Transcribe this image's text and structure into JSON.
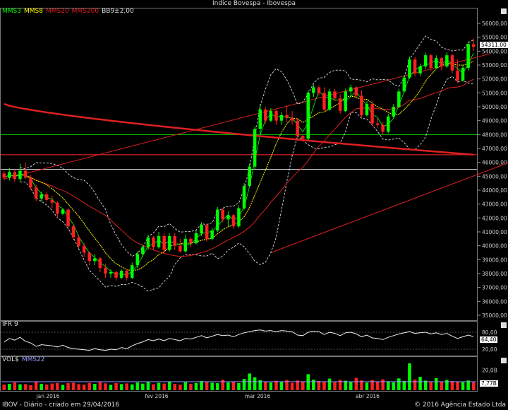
{
  "title": "Índice Bovespa - Ibovespa",
  "legend": {
    "items": [
      {
        "label": "MMS3",
        "color": "#00ff00"
      },
      {
        "label": "MMS8",
        "color": "#ffff00"
      },
      {
        "label": "MMS20",
        "color": "#dd2020"
      },
      {
        "label": "MMS200",
        "color": "#dd2020"
      },
      {
        "label": "BB9±2,00",
        "color": "#dddddd"
      }
    ]
  },
  "price_axis": {
    "ticks": [
      "56000,00",
      "55000,00",
      "54000,00",
      "53000,00",
      "52000,00",
      "51000,00",
      "50000,00",
      "49000,00",
      "48000,00",
      "47000,00",
      "46000,00",
      "45000,00",
      "44000,00",
      "43000,00",
      "42000,00",
      "41000,00",
      "40000,00",
      "39000,00",
      "38000,00",
      "37000,00",
      "36000,00",
      "35000,00"
    ],
    "last_value": "54311,00"
  },
  "x_labels": [
    "jan 2016",
    "fev 2016",
    "mar 2016",
    "abr 2016"
  ],
  "ifr": {
    "label": "IFR 9",
    "ticks": [
      "80,00",
      "20,00"
    ],
    "last_value": "64,40"
  },
  "volume": {
    "label_vol": "VOL$",
    "label_mms": "MMS22",
    "tick": "20,0B",
    "last_value": "7,77B"
  },
  "footer": {
    "left": "IBOV - Diário - criado em 29/04/2016",
    "right": "© 2016 Agência Estado Ltda"
  },
  "colors": {
    "up": "#00ff00",
    "down": "#ff2020",
    "mms3": "#00ff00",
    "mms8": "#ffff00",
    "mms20": "#dd2020",
    "mms200": "#dd2020",
    "bollinger": "#dddddd",
    "support_green": "#00cc00",
    "level_white": "#cccccc",
    "volume_avg": "#9999ff"
  },
  "chart_data": {
    "type": "candlestick",
    "title": "Índice Bovespa - Ibovespa",
    "y_range": [
      34500,
      56700
    ],
    "ifr_range": [
      0,
      100
    ],
    "volume_unit": "B",
    "horizontal_levels": [
      {
        "value": 48000,
        "color": "green"
      },
      {
        "value": 46550,
        "color": "red"
      },
      {
        "value": 45500,
        "color": "white"
      }
    ],
    "trendlines": [
      {
        "from": [
          0,
          44800
        ],
        "to": [
          91,
          53800
        ]
      },
      {
        "from": [
          50,
          39500
        ],
        "to": [
          114,
          48800
        ]
      }
    ],
    "ohlc": [
      [
        45200,
        45400,
        44700,
        44900
      ],
      [
        44900,
        45600,
        44700,
        45300
      ],
      [
        45300,
        45500,
        44600,
        44800
      ],
      [
        44800,
        45900,
        44600,
        45400
      ],
      [
        45400,
        46000,
        44800,
        44900
      ],
      [
        44900,
        45100,
        44000,
        44200
      ],
      [
        44200,
        44400,
        43200,
        43400
      ],
      [
        43400,
        43900,
        43200,
        43700
      ],
      [
        43700,
        43900,
        43200,
        43300
      ],
      [
        43300,
        43600,
        42700,
        43100
      ],
      [
        43100,
        43200,
        42000,
        42300
      ],
      [
        42300,
        42700,
        42200,
        42600
      ],
      [
        42600,
        42700,
        41200,
        41400
      ],
      [
        41400,
        41500,
        40400,
        40600
      ],
      [
        40600,
        40800,
        39800,
        40000
      ],
      [
        40000,
        40200,
        39200,
        39500
      ],
      [
        39500,
        39600,
        38600,
        38900
      ],
      [
        38900,
        39400,
        38600,
        39100
      ],
      [
        39100,
        39200,
        38100,
        38400
      ],
      [
        38400,
        38700,
        37700,
        38000
      ],
      [
        38000,
        38300,
        37700,
        38100
      ],
      [
        38100,
        38200,
        37500,
        37700
      ],
      [
        37700,
        38300,
        37600,
        38200
      ],
      [
        38200,
        38300,
        37500,
        37700
      ],
      [
        37700,
        38800,
        37600,
        38600
      ],
      [
        38600,
        39600,
        38400,
        39400
      ],
      [
        39400,
        40100,
        39200,
        39900
      ],
      [
        39900,
        40800,
        39700,
        40600
      ],
      [
        40600,
        40700,
        39700,
        39900
      ],
      [
        39900,
        41000,
        39800,
        40700
      ],
      [
        40700,
        40900,
        39500,
        39700
      ],
      [
        39700,
        40900,
        39600,
        40700
      ],
      [
        40700,
        40900,
        39700,
        40000
      ],
      [
        40000,
        40500,
        39500,
        39600
      ],
      [
        39600,
        40800,
        39500,
        40500
      ],
      [
        40500,
        40600,
        39900,
        40200
      ],
      [
        40200,
        41100,
        40100,
        40900
      ],
      [
        40900,
        41700,
        40700,
        41500
      ],
      [
        41500,
        41600,
        40300,
        40500
      ],
      [
        40500,
        41300,
        40400,
        41100
      ],
      [
        41100,
        42800,
        41000,
        42600
      ],
      [
        42600,
        42700,
        41700,
        41900
      ],
      [
        41900,
        42500,
        41400,
        42200
      ],
      [
        42200,
        42300,
        41200,
        41400
      ],
      [
        41400,
        42900,
        41300,
        42700
      ],
      [
        42700,
        44500,
        42600,
        44300
      ],
      [
        44300,
        45900,
        44200,
        45700
      ],
      [
        45700,
        48600,
        45500,
        48400
      ],
      [
        48400,
        50200,
        48000,
        49800
      ],
      [
        49800,
        50000,
        48800,
        49000
      ],
      [
        49000,
        49900,
        48900,
        49700
      ],
      [
        49700,
        49800,
        48700,
        49000
      ],
      [
        49000,
        49600,
        48700,
        49400
      ],
      [
        49400,
        50100,
        48900,
        49200
      ],
      [
        49200,
        49700,
        48700,
        49000
      ],
      [
        49000,
        49200,
        47700,
        47900
      ],
      [
        47900,
        48000,
        47500,
        47700
      ],
      [
        47700,
        51200,
        47600,
        51000
      ],
      [
        51000,
        51600,
        50700,
        51400
      ],
      [
        51400,
        51500,
        50800,
        51000
      ],
      [
        51000,
        51400,
        49600,
        49800
      ],
      [
        49800,
        51300,
        49700,
        51100
      ],
      [
        51100,
        51300,
        50400,
        50600
      ],
      [
        50600,
        50900,
        49500,
        49700
      ],
      [
        49700,
        51300,
        49600,
        51100
      ],
      [
        51100,
        51600,
        50700,
        51400
      ],
      [
        51400,
        51500,
        50600,
        50800
      ],
      [
        50800,
        51200,
        49200,
        49400
      ],
      [
        49400,
        50400,
        49300,
        50200
      ],
      [
        50200,
        50400,
        48600,
        48800
      ],
      [
        48800,
        49200,
        48500,
        48700
      ],
      [
        48700,
        48900,
        48000,
        48200
      ],
      [
        48200,
        49500,
        48100,
        49300
      ],
      [
        49300,
        50200,
        49200,
        50000
      ],
      [
        50000,
        51300,
        49900,
        51100
      ],
      [
        51100,
        52300,
        51000,
        52100
      ],
      [
        52100,
        53600,
        52000,
        53400
      ],
      [
        53400,
        53600,
        52200,
        52400
      ],
      [
        52400,
        53100,
        52200,
        52900
      ],
      [
        52900,
        53900,
        52700,
        53700
      ],
      [
        53700,
        53800,
        52600,
        52800
      ],
      [
        52800,
        53700,
        52700,
        53500
      ],
      [
        53500,
        53600,
        52600,
        52900
      ],
      [
        52900,
        53900,
        52800,
        53700
      ],
      [
        53700,
        53800,
        52400,
        52600
      ],
      [
        52600,
        53400,
        51700,
        51900
      ],
      [
        51900,
        53000,
        51800,
        52800
      ],
      [
        52800,
        54700,
        52600,
        54500
      ],
      [
        54500,
        54900,
        54000,
        54311
      ]
    ],
    "ifr": [
      45,
      58,
      52,
      62,
      48,
      42,
      30,
      36,
      34,
      32,
      28,
      34,
      26,
      22,
      20,
      18,
      16,
      22,
      18,
      16,
      20,
      18,
      26,
      22,
      32,
      40,
      46,
      54,
      50,
      56,
      50,
      58,
      54,
      50,
      58,
      56,
      62,
      68,
      60,
      66,
      72,
      68,
      70,
      64,
      72,
      78,
      82,
      86,
      88,
      84,
      86,
      82,
      86,
      84,
      82,
      70,
      68,
      80,
      84,
      82,
      72,
      80,
      76,
      68,
      78,
      80,
      74,
      64,
      70,
      60,
      58,
      54,
      62,
      68,
      74,
      78,
      82,
      76,
      78,
      80,
      74,
      78,
      72,
      76,
      66,
      58,
      64,
      70,
      64.4
    ],
    "volume": [
      5.5,
      6.2,
      7.8,
      5.9,
      6.1,
      5.0,
      8.2,
      6.4,
      5.7,
      6.6,
      7.1,
      5.3,
      6.9,
      7.4,
      6.0,
      5.6,
      7.2,
      6.3,
      8.0,
      6.8,
      5.4,
      7.0,
      6.1,
      6.7,
      5.8,
      7.6,
      6.5,
      8.4,
      5.9,
      7.3,
      6.6,
      8.8,
      6.2,
      5.5,
      7.9,
      6.4,
      7.1,
      9.0,
      8.3,
      7.4,
      6.9,
      10.5,
      7.7,
      8.2,
      7.0,
      11.2,
      16.5,
      12.8,
      9.9,
      8.1,
      7.6,
      9.3,
      8.5,
      10.1,
      7.2,
      9.6,
      8.8,
      15.8,
      10.4,
      9.1,
      8.6,
      11.5,
      7.9,
      10.2,
      9.4,
      8.0,
      12.1,
      9.7,
      7.5,
      9.9,
      8.3,
      10.8,
      8.9,
      7.8,
      11.7,
      9.2,
      26.5,
      10.6,
      13.2,
      9.5,
      8.7,
      11.9,
      8.1,
      10.3,
      9.0,
      8.4,
      7.9,
      9.6,
      7.77
    ],
    "volume_avg": 8.4
  }
}
